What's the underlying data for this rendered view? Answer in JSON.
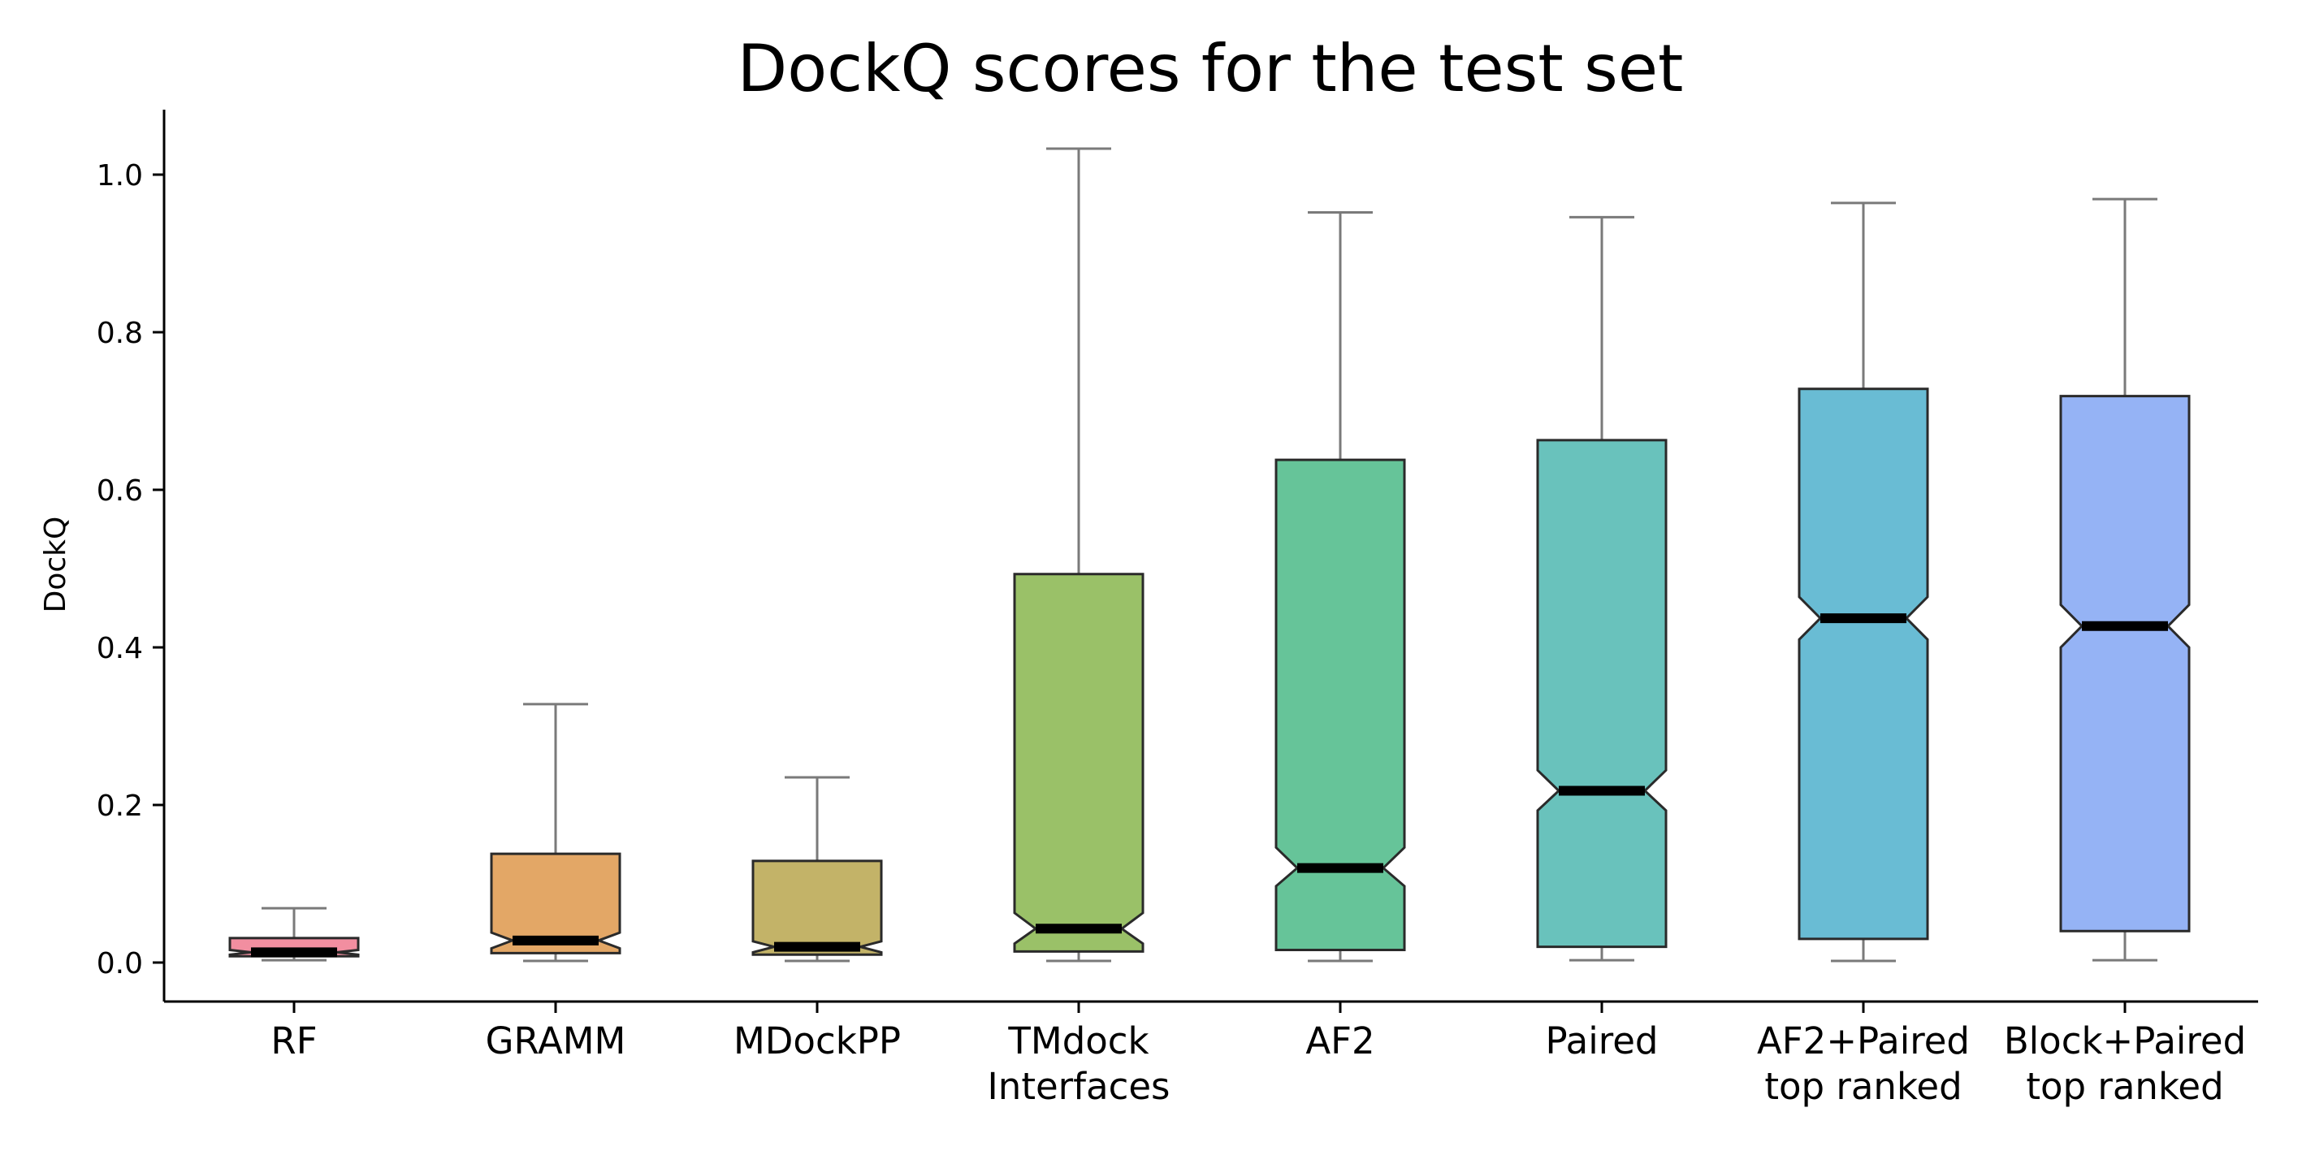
{
  "chart_data": {
    "type": "box",
    "title": "DockQ scores for the test set",
    "xlabel": "",
    "ylabel": "DockQ",
    "ylim": [
      -0.05,
      1.09
    ],
    "yticks": [
      0.0,
      0.2,
      0.4,
      0.6,
      0.8,
      1.0
    ],
    "ytick_labels": [
      "0.0",
      "0.2",
      "0.4",
      "0.6",
      "0.8",
      "1.0"
    ],
    "grid": false,
    "notched": true,
    "categories": [
      {
        "label": [
          "RF"
        ],
        "color": "#f28ea0",
        "whisker_low": 0.003,
        "q1": 0.008,
        "median": 0.013,
        "q3": 0.031,
        "whisker_high": 0.069,
        "notch_low": 0.01,
        "notch_high": 0.016
      },
      {
        "label": [
          "GRAMM"
        ],
        "color": "#e3a766",
        "whisker_low": 0.002,
        "q1": 0.012,
        "median": 0.028,
        "q3": 0.138,
        "whisker_high": 0.328,
        "notch_low": 0.018,
        "notch_high": 0.038
      },
      {
        "label": [
          "MDockPP"
        ],
        "color": "#c3b368",
        "whisker_low": 0.002,
        "q1": 0.01,
        "median": 0.02,
        "q3": 0.129,
        "whisker_high": 0.235,
        "notch_low": 0.013,
        "notch_high": 0.027
      },
      {
        "label": [
          "TMdock",
          "Interfaces"
        ],
        "color": "#9ac168",
        "whisker_low": 0.002,
        "q1": 0.014,
        "median": 0.043,
        "q3": 0.493,
        "whisker_high": 1.033,
        "notch_low": 0.024,
        "notch_high": 0.063
      },
      {
        "label": [
          "AF2"
        ],
        "color": "#66c499",
        "whisker_low": 0.002,
        "q1": 0.016,
        "median": 0.12,
        "q3": 0.638,
        "whisker_high": 0.952,
        "notch_low": 0.097,
        "notch_high": 0.146
      },
      {
        "label": [
          "Paired"
        ],
        "color": "#69c2bc",
        "whisker_low": 0.003,
        "q1": 0.02,
        "median": 0.218,
        "q3": 0.663,
        "whisker_high": 0.946,
        "notch_low": 0.193,
        "notch_high": 0.244
      },
      {
        "label": [
          "AF2+Paired",
          "top ranked"
        ],
        "color": "#69bcd4",
        "whisker_low": 0.002,
        "q1": 0.03,
        "median": 0.437,
        "q3": 0.728,
        "whisker_high": 0.964,
        "notch_low": 0.41,
        "notch_high": 0.464
      },
      {
        "label": [
          "Block+Paired",
          "top ranked"
        ],
        "color": "#95b3f5",
        "whisker_low": 0.003,
        "q1": 0.04,
        "median": 0.427,
        "q3": 0.719,
        "whisker_high": 0.969,
        "notch_low": 0.4,
        "notch_high": 0.454
      }
    ]
  }
}
